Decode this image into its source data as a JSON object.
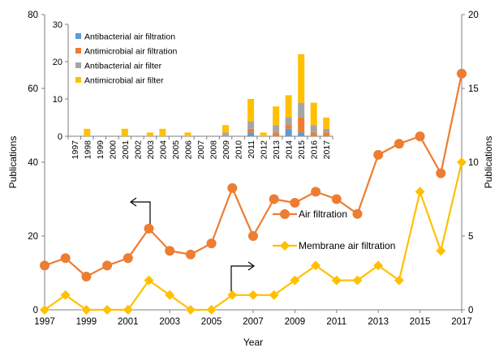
{
  "chart_data": [
    {
      "type": "line",
      "xlabel": "Year",
      "ylabel_left": "Publications",
      "ylabel_right": "Publications",
      "x": [
        1997,
        1998,
        1999,
        2000,
        2001,
        2002,
        2003,
        2004,
        2005,
        2006,
        2007,
        2008,
        2009,
        2010,
        2011,
        2012,
        2013,
        2014,
        2015,
        2016,
        2017
      ],
      "x_ticks": [
        1997,
        1999,
        2001,
        2003,
        2005,
        2007,
        2009,
        2011,
        2013,
        2015,
        2017
      ],
      "ylim_left": [
        0,
        80
      ],
      "yticks_left": [
        0,
        20,
        40,
        60,
        80
      ],
      "ylim_right": [
        0,
        20
      ],
      "yticks_right": [
        0,
        5,
        10,
        15,
        20
      ],
      "series": [
        {
          "name": "Air filtration",
          "axis": "left",
          "color": "#ED7D31",
          "marker": "circle",
          "values": [
            12,
            14,
            9,
            12,
            14,
            22,
            16,
            15,
            18,
            33,
            20,
            30,
            29,
            32,
            30,
            26,
            42,
            45,
            47,
            37,
            64
          ]
        },
        {
          "name": "Membrane air filtration",
          "axis": "right",
          "color": "#FFC000",
          "marker": "diamond",
          "values": [
            0,
            1,
            0,
            0,
            0,
            2,
            1,
            0,
            0,
            1,
            1,
            1,
            2,
            3,
            2,
            2,
            3,
            2,
            8,
            4,
            10
          ]
        }
      ],
      "legend_position": "center-right",
      "grid": false
    },
    {
      "type": "bar",
      "stacked": true,
      "categories": [
        "1997",
        "1998",
        "1999",
        "2000",
        "2001",
        "2002",
        "2003",
        "2004",
        "2005",
        "2006",
        "2007",
        "2008",
        "2009",
        "2010",
        "2011",
        "2012",
        "2013",
        "2014",
        "2015",
        "2016",
        "2017"
      ],
      "ylim": [
        0,
        30
      ],
      "yticks": [
        0,
        10,
        20,
        30
      ],
      "series": [
        {
          "name": "Antibacterial air filtration",
          "color": "#5B9BD5",
          "values": [
            0,
            0,
            0,
            0,
            0,
            0,
            0,
            0,
            0,
            0,
            0,
            0,
            0,
            0,
            1,
            0,
            0,
            2,
            1,
            0,
            0
          ]
        },
        {
          "name": "Antimicrobial air filtration",
          "color": "#ED7D31",
          "values": [
            0,
            0,
            0,
            0,
            0,
            0,
            0,
            0,
            0,
            0,
            0,
            0,
            0,
            0,
            1,
            0,
            1,
            1,
            4,
            1,
            1
          ]
        },
        {
          "name": "Antibacterial air filter",
          "color": "#A5A5A5",
          "values": [
            0,
            0,
            0,
            0,
            0,
            0,
            0,
            0,
            0,
            0,
            0,
            0,
            1,
            0,
            2,
            0,
            2,
            2,
            4,
            2,
            1
          ]
        },
        {
          "name": "Antimicrobial air filter",
          "color": "#FFC000",
          "values": [
            0,
            2,
            0,
            0,
            2,
            0,
            1,
            2,
            0,
            1,
            0,
            0,
            2,
            0,
            6,
            1,
            5,
            6,
            13,
            6,
            3
          ]
        }
      ],
      "legend_position": "top-left",
      "grid": false
    }
  ]
}
